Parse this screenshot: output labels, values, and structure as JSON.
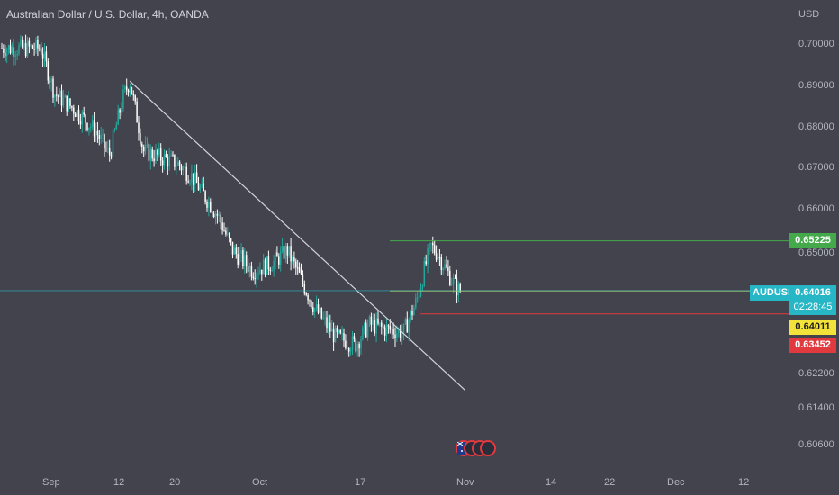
{
  "header": {
    "title": "Australian Dollar / U.S. Dollar, 4h, OANDA",
    "currency": "USD"
  },
  "tags": {
    "green_level": "0.65225",
    "symbol": "AUDUSD",
    "last_price": "0.64016",
    "countdown": "02:28:45",
    "yellow_level": "0.64011",
    "red_level": "0.63452"
  },
  "colors": {
    "background": "#42434d",
    "up": "#26a69a",
    "down": "#ffffff",
    "trendline": "#d1d4dc",
    "green_line": "#43a94a",
    "yellow_line": "#f3e23a",
    "red_line": "#e0393e",
    "last_price_line": "#26b6c6"
  },
  "events": {
    "icon": "economic-calendar-flag-icons",
    "count": 4
  },
  "chart_data": {
    "type": "candlestick",
    "title": "Australian Dollar / U.S. Dollar, 4h, OANDA",
    "y_unit": "USD",
    "ylim": [
      0.603,
      0.7045
    ],
    "y_ticks": [
      "0.70000",
      "0.69000",
      "0.68000",
      "0.67000",
      "0.66000",
      "0.65000",
      "0.62200",
      "0.61400",
      "0.60600"
    ],
    "x_ticks": [
      "Sep",
      "12",
      "20",
      "Oct",
      "17",
      "Nov",
      "14",
      "22",
      "Dec",
      "12"
    ],
    "approx_close_path": [
      {
        "t": "Aug 31",
        "v": 0.699
      },
      {
        "t": "Sep 2",
        "v": 0.688
      },
      {
        "t": "Sep 5",
        "v": 0.684
      },
      {
        "t": "Sep 8",
        "v": 0.679
      },
      {
        "t": "Sep 10",
        "v": 0.673
      },
      {
        "t": "Sep 12",
        "v": 0.687
      },
      {
        "t": "Sep 13",
        "v": 0.691
      },
      {
        "t": "Sep 15",
        "v": 0.674
      },
      {
        "t": "Sep 20",
        "v": 0.671
      },
      {
        "t": "Sep 22",
        "v": 0.668
      },
      {
        "t": "Sep 26",
        "v": 0.658
      },
      {
        "t": "Sep 28",
        "v": 0.65
      },
      {
        "t": "Oct 1",
        "v": 0.645
      },
      {
        "t": "Oct 4",
        "v": 0.647
      },
      {
        "t": "Oct 6",
        "v": 0.65
      },
      {
        "t": "Oct 10",
        "v": 0.636
      },
      {
        "t": "Oct 13",
        "v": 0.629
      },
      {
        "t": "Oct 16",
        "v": 0.627
      },
      {
        "t": "Oct 18",
        "v": 0.632
      },
      {
        "t": "Oct 20",
        "v": 0.631
      },
      {
        "t": "Oct 23",
        "v": 0.63
      },
      {
        "t": "Oct 25",
        "v": 0.638
      },
      {
        "t": "Oct 26",
        "v": 0.645
      },
      {
        "t": "Oct 27",
        "v": 0.651
      },
      {
        "t": "Oct 28",
        "v": 0.649
      },
      {
        "t": "Oct 30",
        "v": 0.643
      },
      {
        "t": "Oct 31",
        "v": 0.6402
      }
    ],
    "annotations": [
      {
        "type": "trendline",
        "from": {
          "t": "Sep 13",
          "v": 0.691
        },
        "to": {
          "t": "Nov 1",
          "v": 0.616
        }
      },
      {
        "type": "hline",
        "v": 0.65225,
        "label": "0.65225"
      },
      {
        "type": "hline",
        "v": 0.64011,
        "label": "0.64011"
      },
      {
        "type": "hline",
        "v": 0.63452,
        "label": "0.63452"
      },
      {
        "type": "last_price",
        "v": 0.64016,
        "label": "AUDUSD"
      }
    ],
    "grid": false,
    "legend": "none"
  }
}
